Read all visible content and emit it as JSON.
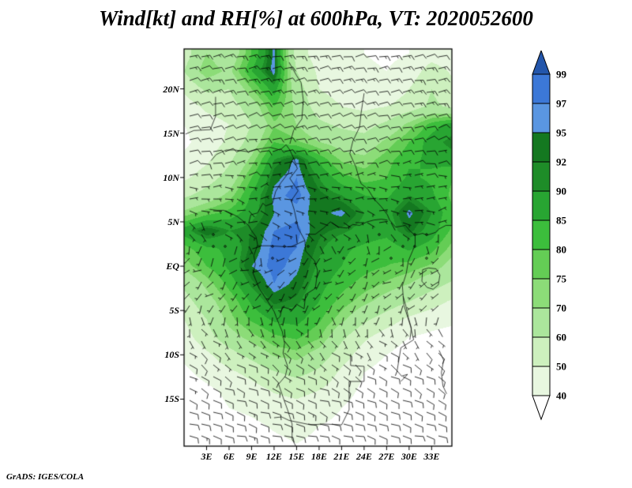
{
  "title": "Wind[kt] and RH[%] at 600hPa, VT: 2020052600",
  "footer": "GrADS: IGES/COLA",
  "chart_data": {
    "type": "heatmap",
    "title": "Wind[kt] and RH[%] at 600hPa, VT: 2020052600",
    "variable": "Relative humidity [%] shaded with wind barbs [kt]",
    "level": "600hPa",
    "valid_time": "2020052600",
    "lon_range": [
      0,
      35.7
    ],
    "lat_range": [
      -20.3,
      24.5
    ],
    "x_tick_labels": [
      "3E",
      "6E",
      "9E",
      "12E",
      "15E",
      "18E",
      "21E",
      "24E",
      "27E",
      "30E",
      "33E"
    ],
    "x_tick_values": [
      3,
      6,
      9,
      12,
      15,
      18,
      21,
      24,
      27,
      30,
      33
    ],
    "y_tick_labels": [
      "20N",
      "15N",
      "10N",
      "5N",
      "EQ",
      "5S",
      "10S",
      "15S"
    ],
    "y_tick_values": [
      20,
      15,
      10,
      5,
      0,
      -5,
      -10,
      -15
    ],
    "colorbar": {
      "labels_top_to_bottom": [
        "99",
        "97",
        "95",
        "92",
        "90",
        "85",
        "80",
        "75",
        "70",
        "60",
        "50",
        "40"
      ],
      "levels": [
        40,
        50,
        60,
        70,
        75,
        80,
        85,
        90,
        92,
        95,
        97,
        99
      ],
      "colors_low_to_high": [
        "#ffffff",
        "#e8f7e0",
        "#cdf0be",
        "#abe69c",
        "#8cdc78",
        "#64cd55",
        "#3cbe3c",
        "#28a532",
        "#1e8c28",
        "#147820",
        "#5a96e1",
        "#3c78d7",
        "#2356ab"
      ]
    },
    "rh_grid": {
      "units": "%",
      "lons": [
        0,
        3,
        6,
        9,
        12,
        15,
        18,
        21,
        24,
        27,
        30,
        33,
        36
      ],
      "lats": [
        24,
        22,
        20,
        18,
        16,
        14,
        12,
        10,
        8,
        6,
        4,
        2,
        0,
        -2,
        -4,
        -6,
        -8,
        -10,
        -12,
        -14,
        -16,
        -18,
        -20
      ],
      "values": [
        [
          55,
          70,
          62,
          80,
          96,
          55,
          45,
          42,
          40,
          38,
          40,
          45,
          42
        ],
        [
          60,
          75,
          68,
          85,
          97,
          60,
          48,
          44,
          42,
          40,
          44,
          55,
          48
        ],
        [
          52,
          62,
          60,
          75,
          88,
          65,
          50,
          46,
          44,
          42,
          50,
          60,
          52
        ],
        [
          45,
          52,
          55,
          65,
          80,
          68,
          55,
          50,
          48,
          50,
          55,
          62,
          58
        ],
        [
          40,
          46,
          50,
          60,
          74,
          70,
          62,
          58,
          56,
          62,
          72,
          82,
          88
        ],
        [
          38,
          44,
          52,
          64,
          80,
          76,
          70,
          66,
          64,
          72,
          80,
          88,
          92
        ],
        [
          42,
          48,
          58,
          72,
          90,
          96,
          84,
          74,
          72,
          78,
          84,
          86,
          88
        ],
        [
          48,
          55,
          64,
          80,
          94,
          97,
          90,
          82,
          78,
          80,
          86,
          84,
          80
        ],
        [
          58,
          64,
          72,
          86,
          96,
          98,
          93,
          90,
          85,
          84,
          90,
          86,
          78
        ],
        [
          72,
          78,
          82,
          88,
          95,
          96,
          94,
          96,
          90,
          88,
          96,
          90,
          80
        ],
        [
          88,
          95,
          90,
          92,
          97,
          98,
          93,
          91,
          88,
          87,
          93,
          88,
          78
        ],
        [
          78,
          84,
          86,
          93,
          98,
          97,
          91,
          86,
          84,
          82,
          86,
          82,
          72
        ],
        [
          72,
          80,
          86,
          95,
          98,
          96,
          89,
          85,
          82,
          80,
          78,
          74,
          66
        ],
        [
          62,
          72,
          82,
          91,
          97,
          94,
          87,
          82,
          78,
          74,
          70,
          64,
          58
        ],
        [
          56,
          66,
          76,
          86,
          93,
          91,
          85,
          78,
          72,
          66,
          60,
          54,
          48
        ],
        [
          50,
          60,
          73,
          81,
          86,
          87,
          81,
          72,
          62,
          55,
          48,
          44,
          42
        ],
        [
          46,
          56,
          66,
          73,
          79,
          81,
          76,
          62,
          52,
          45,
          40,
          38,
          36
        ],
        [
          42,
          48,
          56,
          63,
          71,
          73,
          66,
          55,
          45,
          40,
          36,
          34,
          33
        ],
        [
          38,
          43,
          48,
          53,
          59,
          63,
          58,
          48,
          40,
          36,
          34,
          32,
          31
        ],
        [
          35,
          38,
          42,
          46,
          51,
          53,
          50,
          44,
          38,
          34,
          32,
          31,
          30
        ],
        [
          34,
          36,
          40,
          42,
          45,
          47,
          44,
          40,
          36,
          32,
          30,
          30,
          30
        ],
        [
          32,
          34,
          36,
          38,
          41,
          43,
          40,
          38,
          34,
          32,
          30,
          29,
          29
        ],
        [
          30,
          32,
          34,
          36,
          38,
          40,
          38,
          36,
          32,
          30,
          29,
          28,
          28
        ]
      ]
    },
    "wind_grid": {
      "units": "kt",
      "lons": [
        0,
        3,
        6,
        9,
        12,
        15,
        18,
        21,
        24,
        27,
        30,
        33,
        36
      ],
      "lats": [
        24,
        20,
        16,
        12,
        8,
        4,
        0,
        -4,
        -8,
        -12,
        -16,
        -20
      ],
      "u": [
        [
          -14,
          -13,
          -12,
          -14,
          -12,
          -13,
          -14,
          -12,
          -13,
          -14,
          -12,
          -13,
          -14
        ],
        [
          -12,
          -13,
          -11,
          -12,
          -13,
          -12,
          -11,
          -13,
          -12,
          -11,
          -12,
          -13,
          -12
        ],
        [
          -10,
          -11,
          -10,
          -9,
          -10,
          -11,
          -10,
          -9,
          -10,
          -11,
          -10,
          -9,
          -10
        ],
        [
          -8,
          -9,
          -8,
          -7,
          -8,
          -9,
          -8,
          -7,
          -8,
          -8,
          -9,
          -8,
          -7
        ],
        [
          -5,
          -6,
          -5,
          -4,
          -5,
          -6,
          -5,
          -4,
          -5,
          -5,
          -6,
          -5,
          -4
        ],
        [
          -3,
          -2,
          -3,
          -2,
          -3,
          -2,
          -3,
          -2,
          -3,
          -2,
          -3,
          -2,
          -3
        ],
        [
          2,
          3,
          2,
          3,
          2,
          3,
          2,
          3,
          2,
          3,
          2,
          3,
          2
        ],
        [
          4,
          3,
          4,
          3,
          4,
          3,
          4,
          3,
          4,
          3,
          4,
          3,
          4
        ],
        [
          -3,
          -4,
          -3,
          -4,
          -3,
          -4,
          -3,
          -4,
          -3,
          -4,
          -3,
          -4,
          -3
        ],
        [
          -7,
          -8,
          -7,
          -8,
          -7,
          -8,
          -7,
          -8,
          -7,
          -8,
          -7,
          -8,
          -7
        ],
        [
          -9,
          -10,
          -9,
          -10,
          -9,
          -10,
          -9,
          -10,
          -9,
          -10,
          -9,
          -10,
          -9
        ],
        [
          -10,
          -11,
          -10,
          -11,
          -10,
          -11,
          -10,
          -11,
          -10,
          -11,
          -10,
          -11,
          -10
        ]
      ],
      "v": [
        [
          -3,
          -2,
          -3,
          -2,
          -3,
          -2,
          -3,
          -2,
          -3,
          -2,
          -3,
          -2,
          -3
        ],
        [
          -2,
          -3,
          -2,
          -3,
          -2,
          -3,
          -2,
          -3,
          -2,
          -3,
          -2,
          -3,
          -2
        ],
        [
          -3,
          -2,
          -3,
          -2,
          -3,
          -2,
          -3,
          -2,
          -3,
          -2,
          -3,
          -2,
          -3
        ],
        [
          -2,
          -1,
          -2,
          -1,
          -2,
          -1,
          -2,
          -1,
          -2,
          -1,
          -2,
          -1,
          -2
        ],
        [
          0,
          1,
          0,
          -1,
          0,
          1,
          0,
          -1,
          0,
          1,
          0,
          -1,
          0
        ],
        [
          2,
          1,
          2,
          1,
          2,
          1,
          2,
          1,
          2,
          1,
          2,
          1,
          2
        ],
        [
          3,
          2,
          3,
          2,
          3,
          2,
          3,
          2,
          3,
          2,
          3,
          2,
          3
        ],
        [
          4,
          3,
          4,
          3,
          4,
          3,
          4,
          3,
          4,
          3,
          4,
          3,
          4
        ],
        [
          5,
          4,
          5,
          4,
          5,
          4,
          5,
          4,
          5,
          4,
          5,
          4,
          5
        ],
        [
          4,
          5,
          4,
          5,
          4,
          5,
          4,
          5,
          4,
          5,
          4,
          5,
          4
        ],
        [
          3,
          4,
          3,
          4,
          3,
          4,
          3,
          4,
          3,
          4,
          3,
          4,
          3
        ],
        [
          2,
          3,
          2,
          3,
          2,
          3,
          2,
          3,
          2,
          3,
          2,
          3,
          2
        ]
      ]
    }
  }
}
